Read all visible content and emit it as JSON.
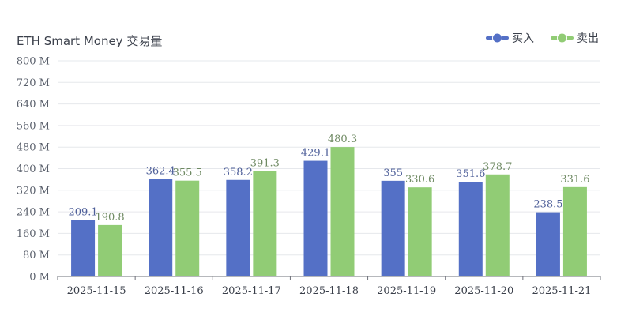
{
  "chart_data": {
    "type": "bar",
    "title": "ETH Smart Money 交易量",
    "categories": [
      "2025-11-15",
      "2025-11-16",
      "2025-11-17",
      "2025-11-18",
      "2025-11-19",
      "2025-11-20",
      "2025-11-21"
    ],
    "series": [
      {
        "name": "买入",
        "color": "#5470c6",
        "label_color": "#4e5f99",
        "values": [
          209.1,
          362.4,
          358.2,
          429.1,
          355,
          351.6,
          238.5
        ],
        "labels": [
          "209.1",
          "362.4",
          "358.2",
          "429.1",
          "355",
          "351.6",
          "238.5"
        ]
      },
      {
        "name": "卖出",
        "color": "#91cc75",
        "label_color": "#6f8a63",
        "values": [
          190.8,
          355.5,
          391.3,
          480.3,
          330.6,
          378.7,
          331.6
        ],
        "labels": [
          "190.8",
          "355.5",
          "391.3",
          "480.3",
          "330.6",
          "378.7",
          "331.6"
        ]
      }
    ],
    "y_ticks": [
      0,
      80,
      160,
      240,
      320,
      400,
      480,
      560,
      640,
      720,
      800
    ],
    "y_tick_labels": [
      "0 M",
      "80 M",
      "160 M",
      "240 M",
      "320 M",
      "400 M",
      "480 M",
      "560 M",
      "640 M",
      "720 M",
      "800 M"
    ],
    "ylim": [
      0,
      800
    ],
    "xlabel": "",
    "ylabel": "",
    "grid": true,
    "legend": "top-right",
    "grid_color": "#e6e8ec",
    "axis_color": "#6e7079"
  }
}
